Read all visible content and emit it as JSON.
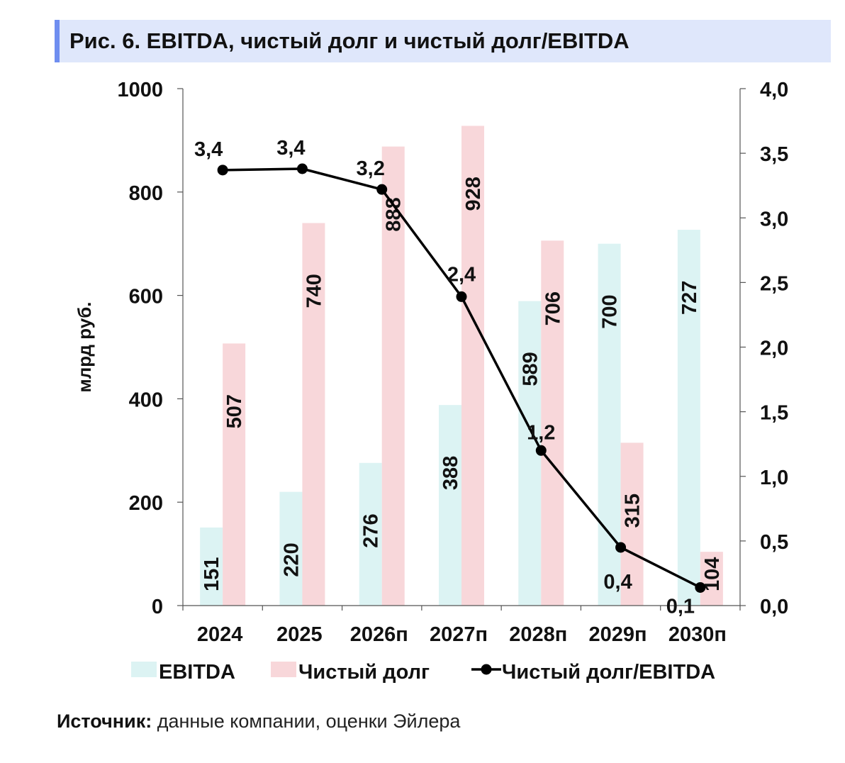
{
  "figure": {
    "title": "Рис. 6. EBITDA, чистый долг и чистый долг/EBITDA",
    "source_label": "Источник:",
    "source_text": " данные компании, оценки Эйлера"
  },
  "chart_data": {
    "type": "bar",
    "title": "Рис. 6. EBITDA, чистый долг и чистый долг/EBITDA",
    "categories": [
      "2024",
      "2025",
      "2026п",
      "2027п",
      "2028п",
      "2029п",
      "2030п"
    ],
    "ylabel": "млрд руб.",
    "ylim": [
      0,
      1000
    ],
    "yticks": [
      "0",
      "200",
      "400",
      "600",
      "800",
      "1000"
    ],
    "y2lim": [
      0,
      4.0
    ],
    "y2ticks": [
      "0,0",
      "0,5",
      "1,0",
      "1,5",
      "2,0",
      "2,5",
      "3,0",
      "3,5",
      "4,0"
    ],
    "grid": false,
    "legend_position": "bottom",
    "series": [
      {
        "name": "EBITDA",
        "type": "bar",
        "axis": "left",
        "color": "#dcf3f3",
        "values": [
          151,
          220,
          276,
          388,
          589,
          700,
          727
        ],
        "labels": [
          "151",
          "220",
          "276",
          "388",
          "589",
          "700",
          "727"
        ]
      },
      {
        "name": "Чистый долг",
        "type": "bar",
        "axis": "left",
        "color": "#f8d7da",
        "values": [
          507,
          740,
          888,
          928,
          706,
          315,
          104
        ],
        "labels": [
          "507",
          "740",
          "888",
          "928",
          "706",
          "315",
          "104"
        ]
      },
      {
        "name": "Чистый долг/EBITDA",
        "type": "line",
        "axis": "right",
        "color": "#000000",
        "values": [
          3.37,
          3.38,
          3.22,
          2.39,
          1.2,
          0.45,
          0.14
        ],
        "labels": [
          "3,4",
          "3,4",
          "3,2",
          "2,4",
          "1,2",
          "0,4",
          "0,1"
        ]
      }
    ]
  }
}
